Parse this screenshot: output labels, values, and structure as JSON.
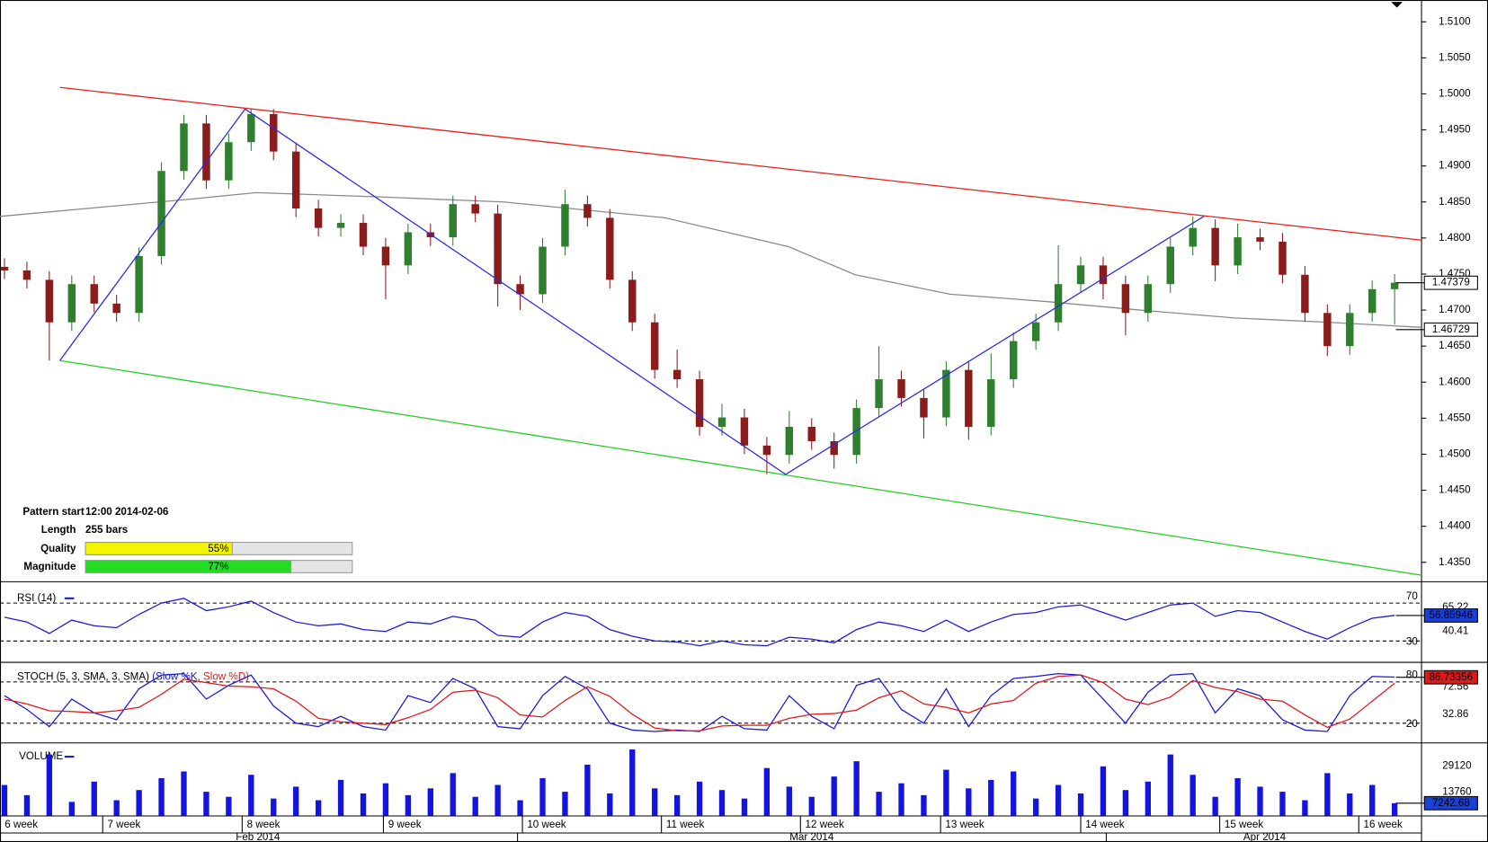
{
  "chart_data": [
    {
      "type": "candlestick",
      "categories": [
        null,
        null,
        null,
        null,
        null,
        null,
        null,
        null,
        null,
        null,
        null,
        null,
        null,
        null,
        null,
        null,
        null,
        null,
        null,
        null,
        null,
        null,
        null,
        null,
        null,
        null,
        null,
        null,
        null,
        null,
        null,
        null,
        null,
        null,
        null,
        null,
        null,
        null,
        null,
        null,
        null,
        null,
        null,
        null,
        null,
        null,
        null,
        null,
        null,
        null,
        null,
        null,
        null,
        null,
        null,
        null,
        null,
        null,
        null,
        null,
        null,
        null,
        null
      ],
      "open": [
        1.476,
        1.4755,
        1.4742,
        1.4683,
        1.4736,
        1.4709,
        1.4696,
        1.4775,
        1.4893,
        1.4959,
        1.488,
        1.4933,
        1.4972,
        1.492,
        1.4841,
        1.4814,
        1.4821,
        1.4788,
        1.4762,
        1.4808,
        1.4801,
        1.4847,
        1.4834,
        1.4736,
        1.4722,
        1.4788,
        1.4847,
        1.4828,
        1.4742,
        1.4683,
        1.4617,
        1.4604,
        1.4538,
        1.4551,
        1.4512,
        1.4499,
        1.4538,
        1.4518,
        1.4499,
        1.4564,
        1.4604,
        1.4578,
        1.4551,
        1.4617,
        1.4538,
        1.4604,
        1.4657,
        1.4683,
        1.4736,
        1.4762,
        1.4736,
        1.4696,
        1.4736,
        1.4788,
        1.4814,
        1.4762,
        1.4801,
        1.4795,
        1.4749,
        1.4696,
        1.465,
        1.4696,
        1.4729
      ],
      "high": [
        1.4772,
        1.4767,
        1.4754,
        1.4748,
        1.4748,
        1.4721,
        1.4787,
        1.4905,
        1.4971,
        1.4971,
        1.4945,
        1.4979,
        1.4979,
        1.4932,
        1.4853,
        1.4833,
        1.4833,
        1.48,
        1.482,
        1.482,
        1.4859,
        1.4859,
        1.4846,
        1.4748,
        1.48,
        1.4867,
        1.4859,
        1.484,
        1.4754,
        1.4695,
        1.4645,
        1.4616,
        1.457,
        1.4563,
        1.4524,
        1.456,
        1.455,
        1.453,
        1.4576,
        1.465,
        1.4616,
        1.459,
        1.4629,
        1.4629,
        1.464,
        1.4669,
        1.4695,
        1.479,
        1.4774,
        1.4774,
        1.4748,
        1.4748,
        1.48,
        1.483,
        1.4826,
        1.482,
        1.4813,
        1.4807,
        1.4761,
        1.4708,
        1.4708,
        1.4741,
        1.475
      ],
      "low": [
        1.4743,
        1.473,
        1.463,
        1.4671,
        1.4697,
        1.4684,
        1.4684,
        1.4763,
        1.4881,
        1.4868,
        1.4868,
        1.4921,
        1.4908,
        1.4829,
        1.4802,
        1.4802,
        1.4776,
        1.4715,
        1.475,
        1.4789,
        1.4789,
        1.4822,
        1.4705,
        1.47,
        1.471,
        1.4776,
        1.4816,
        1.473,
        1.4671,
        1.4605,
        1.4592,
        1.4526,
        1.4526,
        1.45,
        1.4472,
        1.4487,
        1.4506,
        1.448,
        1.4487,
        1.4552,
        1.4566,
        1.4522,
        1.4539,
        1.452,
        1.4526,
        1.4592,
        1.4645,
        1.4671,
        1.4724,
        1.4715,
        1.4665,
        1.4684,
        1.4724,
        1.4776,
        1.474,
        1.475,
        1.4783,
        1.4737,
        1.4684,
        1.4636,
        1.4638,
        1.4684,
        1.468
      ],
      "close": [
        1.4755,
        1.4742,
        1.4683,
        1.4736,
        1.4709,
        1.4696,
        1.4775,
        1.4893,
        1.4959,
        1.488,
        1.4933,
        1.4972,
        1.492,
        1.4841,
        1.4814,
        1.4821,
        1.4788,
        1.4762,
        1.4808,
        1.4801,
        1.4847,
        1.4834,
        1.4736,
        1.4722,
        1.4788,
        1.4847,
        1.4828,
        1.4742,
        1.4683,
        1.4617,
        1.4604,
        1.4538,
        1.4551,
        1.4512,
        1.4499,
        1.4538,
        1.4518,
        1.4499,
        1.4564,
        1.4604,
        1.4578,
        1.4551,
        1.4617,
        1.4538,
        1.4604,
        1.4657,
        1.4683,
        1.4736,
        1.4762,
        1.4736,
        1.4696,
        1.4736,
        1.4788,
        1.4814,
        1.4762,
        1.4801,
        1.4795,
        1.4749,
        1.4696,
        1.465,
        1.4696,
        1.4729,
        1.4738
      ],
      "up_color": "#2f7f2f",
      "down_color": "#8b1c1c",
      "xlim": [
        -0.2,
        63.2
      ],
      "ylim": [
        1.43237,
        1.51303
      ],
      "yticks": [
        {
          "value": 1.51,
          "label": "1.5100"
        },
        {
          "value": 1.505,
          "label": "1.5050"
        },
        {
          "value": 1.5,
          "label": "1.5000"
        },
        {
          "value": 1.495,
          "label": "1.4950"
        },
        {
          "value": 1.49,
          "label": "1.4900"
        },
        {
          "value": 1.485,
          "label": "1.4850"
        },
        {
          "value": 1.48,
          "label": "1.4800"
        },
        {
          "value": 1.475,
          "label": "1.4750"
        },
        {
          "value": 1.47,
          "label": "1.4700"
        },
        {
          "value": 1.465,
          "label": "1.4650"
        },
        {
          "value": 1.46,
          "label": "1.4600"
        },
        {
          "value": 1.455,
          "label": "1.4550"
        },
        {
          "value": 1.45,
          "label": "1.4500"
        },
        {
          "value": 1.445,
          "label": "1.4450"
        },
        {
          "value": 1.44,
          "label": "1.4400"
        },
        {
          "value": 1.435,
          "label": "1.4350"
        }
      ],
      "xticks": [
        {
          "value": -0.2,
          "label": "6 week"
        },
        {
          "value": 4.38,
          "label": "7 week"
        },
        {
          "value": 10.6,
          "label": "8 week"
        },
        {
          "value": 16.9,
          "label": "9 week"
        },
        {
          "value": 23.1,
          "label": "10 week"
        },
        {
          "value": 29.3,
          "label": "11 week"
        },
        {
          "value": 35.5,
          "label": "12 week"
        },
        {
          "value": 41.75,
          "label": "13 week"
        },
        {
          "value": 48.0,
          "label": "14 week"
        },
        {
          "value": 54.2,
          "label": "15 week"
        },
        {
          "value": 60.4,
          "label": "16 week"
        }
      ],
      "month_labels": [
        {
          "value": 11.3,
          "label": "Feb 2014"
        },
        {
          "value": 36.0,
          "label": "Mar 2014"
        },
        {
          "value": 56.2,
          "label": "Apr 2014"
        }
      ],
      "trend_lines": [
        {
          "color": "#ee1c1c",
          "x": [
            2.47,
            63.2
          ],
          "values": [
            1.5009,
            1.4797
          ]
        },
        {
          "color": "#22cc22",
          "x": [
            2.47,
            63.2
          ],
          "values": [
            1.463,
            1.4332
          ]
        },
        {
          "color": "#2a2ae8",
          "x": [
            2.47,
            10.73,
            34.84,
            53.49
          ],
          "values": [
            1.463,
            1.4979,
            1.4472,
            1.483
          ]
        }
      ],
      "moving_average": {
        "color": "#8a8a8a",
        "x": [
          -0.2,
          8.28,
          11.24,
          16.75,
          22.26,
          29.46,
          34.97,
          37.94,
          42.17,
          46.41,
          50.65,
          54.89,
          59.12,
          63.2
        ],
        "values": [
          1.483,
          1.4854,
          1.4863,
          1.4857,
          1.485,
          1.4828,
          1.4788,
          1.4749,
          1.4722,
          1.4712,
          1.47,
          1.4689,
          1.4683,
          1.4676
        ]
      },
      "value_boxes": [
        {
          "value": 1.47379,
          "bg": "#ffffff",
          "fg": "#000000"
        },
        {
          "value": 1.46729,
          "bg": "#ffffff",
          "fg": "#000000"
        }
      ]
    },
    {
      "type": "line",
      "title": "RSI (14)",
      "series": [
        {
          "color": "#1a1ad8",
          "values": [
            55,
            50,
            38,
            52,
            46,
            44,
            58,
            70,
            75,
            62,
            66,
            72,
            60,
            50,
            46,
            48,
            42,
            40,
            50,
            48,
            56,
            52,
            36,
            34,
            50,
            60,
            56,
            42,
            35,
            30,
            29,
            25,
            30,
            26,
            25,
            34,
            32,
            28,
            42,
            50,
            46,
            40,
            52,
            40,
            50,
            58,
            60,
            66,
            68,
            60,
            52,
            60,
            68,
            70,
            56,
            62,
            60,
            50,
            40,
            32,
            44,
            54,
            57
          ]
        }
      ],
      "ylim": [
        9,
        91
      ],
      "levels": [
        70,
        30
      ],
      "yticks": [
        65.22,
        40.41
      ],
      "value_boxes": [
        {
          "value": 56.85946,
          "bg": "#1a3fd6",
          "fg": "#ffffff"
        }
      ]
    },
    {
      "type": "line",
      "title": "STOCH (5, 3, SMA, 3, SMA)",
      "series": [
        {
          "name": "(Slow %K,",
          "color": "#1a1ad8",
          "values": [
            60,
            40,
            15,
            55,
            35,
            25,
            70,
            90,
            92,
            55,
            75,
            90,
            45,
            20,
            15,
            30,
            15,
            10,
            60,
            50,
            85,
            70,
            15,
            12,
            60,
            88,
            70,
            20,
            10,
            8,
            10,
            8,
            30,
            12,
            10,
            60,
            30,
            12,
            75,
            85,
            40,
            20,
            70,
            15,
            60,
            85,
            88,
            92,
            90,
            55,
            20,
            65,
            90,
            92,
            35,
            70,
            60,
            25,
            10,
            8,
            60,
            88,
            87
          ]
        },
        {
          "name": "Slow %D)",
          "color": "#e01818",
          "values": [
            55,
            48,
            38,
            37,
            35,
            38,
            43,
            62,
            84,
            79,
            74,
            73,
            70,
            52,
            27,
            22,
            20,
            18,
            28,
            40,
            65,
            68,
            57,
            32,
            29,
            53,
            73,
            59,
            33,
            13,
            9,
            9,
            16,
            17,
            17,
            27,
            33,
            34,
            39,
            57,
            67,
            48,
            43,
            35,
            48,
            53,
            78,
            88,
            90,
            79,
            55,
            47,
            58,
            82,
            72,
            66,
            55,
            52,
            32,
            14,
            26,
            52,
            78
          ]
        }
      ],
      "ylim": [
        -6.6,
        107.8
      ],
      "levels": [
        80,
        20
      ],
      "yticks": [
        72.56,
        32.86
      ],
      "value_boxes": [
        {
          "value": 86.73356,
          "bg": "#e01818",
          "fg": "#ffffff"
        }
      ]
    },
    {
      "type": "bar",
      "title": "VOLUME",
      "color": "#1414e0",
      "values": [
        18000,
        12000,
        36000,
        8000,
        20000,
        9000,
        15000,
        22000,
        26000,
        14000,
        11000,
        24000,
        10000,
        17000,
        9000,
        21000,
        13000,
        19000,
        12000,
        16000,
        25000,
        11000,
        18000,
        9000,
        22000,
        14000,
        30000,
        13000,
        39000,
        16000,
        12000,
        20000,
        15000,
        10000,
        28000,
        17000,
        11000,
        23000,
        32000,
        14000,
        19000,
        12000,
        27000,
        16000,
        21000,
        26000,
        10000,
        18000,
        13000,
        29000,
        15000,
        20000,
        36000,
        24000,
        11000,
        22000,
        17000,
        14000,
        9000,
        25000,
        13000,
        18000,
        7242.68
      ],
      "ylim": [
        0,
        42000
      ],
      "yticks": [
        29120,
        13760
      ],
      "value_boxes": [
        {
          "value": 7242.68,
          "bg": "#1a3fd6",
          "fg": "#ffffff"
        }
      ]
    }
  ],
  "pattern": {
    "start_label": "Pattern start",
    "start": "12:00 2014-02-06",
    "length_label": "Length",
    "length": "255 bars",
    "quality_label_text": "Quality",
    "quality": 55,
    "quality_label": "55%",
    "magnitude_label_text": "Magnitude",
    "magnitude": 77,
    "magnitude_label": "77%"
  }
}
